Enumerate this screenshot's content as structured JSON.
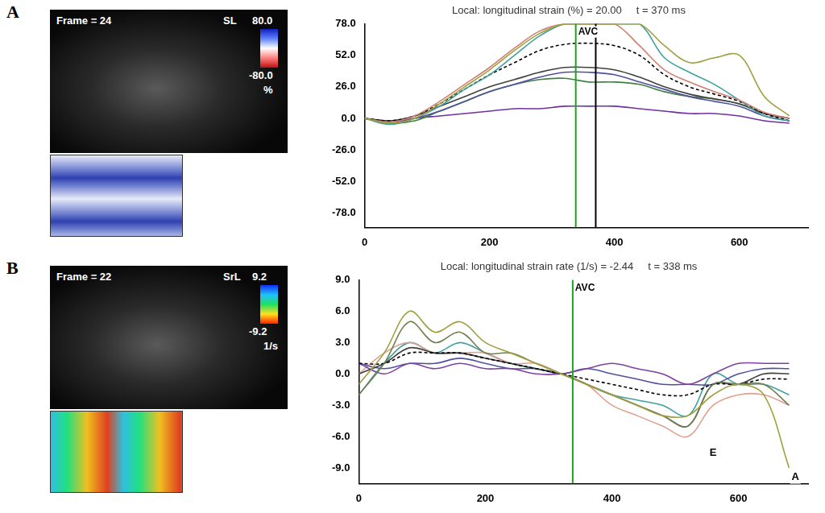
{
  "chart_data": [
    {
      "type": "line",
      "panel": "A",
      "title": "Local: longitudinal strain (%) = 20.00     t = 370 ms",
      "image": {
        "frame_label": "Frame = 24",
        "scale_name": "SL",
        "scale_max": "80.0",
        "scale_min": "-80.0",
        "scale_unit": "%"
      },
      "x": [
        0,
        40,
        80,
        120,
        160,
        200,
        240,
        280,
        320,
        360,
        400,
        440,
        480,
        520,
        560,
        600,
        640,
        680
      ],
      "xlim": [
        0,
        710
      ],
      "xticks": [
        0,
        200,
        400,
        600
      ],
      "ylim": [
        -90,
        78
      ],
      "yticks": [
        {
          "value": -78,
          "label": "-78.0"
        },
        {
          "value": -52,
          "label": "-52.0"
        },
        {
          "value": -26,
          "label": "-26.0"
        },
        {
          "value": 0,
          "label": "0.0"
        },
        {
          "value": 26,
          "label": "26.0"
        },
        {
          "value": 52,
          "label": "52.0"
        },
        {
          "value": 78,
          "label": "78.0"
        }
      ],
      "grid": false,
      "vlines": [
        {
          "x": 338,
          "label": "AVC",
          "color": "#20a020"
        },
        {
          "x": 370,
          "color": "#000000"
        }
      ],
      "series": [
        {
          "color": "#a0a040",
          "line_style": "solid",
          "values": [
            0,
            -4,
            0,
            12,
            26,
            40,
            56,
            70,
            78,
            78,
            78,
            78,
            60,
            46,
            50,
            52,
            18,
            2
          ]
        },
        {
          "color": "#d08070",
          "line_style": "solid",
          "values": [
            0,
            -3,
            2,
            14,
            28,
            42,
            58,
            72,
            78,
            78,
            78,
            60,
            40,
            30,
            22,
            15,
            5,
            0
          ]
        },
        {
          "color": "#40a0a0",
          "line_style": "solid",
          "values": [
            0,
            -5,
            0,
            10,
            24,
            36,
            52,
            68,
            78,
            78,
            78,
            78,
            50,
            38,
            28,
            15,
            2,
            -2
          ]
        },
        {
          "color": "#000000",
          "line_style": "dashed",
          "values": [
            0,
            -2,
            2,
            12,
            24,
            36,
            46,
            56,
            61,
            62,
            60,
            52,
            36,
            26,
            20,
            14,
            4,
            -2
          ]
        },
        {
          "color": "#404040",
          "line_style": "solid",
          "values": [
            0,
            -2,
            2,
            10,
            18,
            26,
            32,
            38,
            42,
            42,
            40,
            34,
            26,
            20,
            16,
            12,
            4,
            0
          ]
        },
        {
          "color": "#5050a0",
          "line_style": "solid",
          "values": [
            0,
            -2,
            0,
            6,
            14,
            22,
            28,
            34,
            38,
            38,
            36,
            30,
            24,
            18,
            14,
            10,
            2,
            -2
          ]
        },
        {
          "color": "#408040",
          "line_style": "solid",
          "values": [
            0,
            -4,
            -2,
            6,
            14,
            22,
            28,
            32,
            33,
            30,
            30,
            28,
            22,
            18,
            16,
            12,
            4,
            0
          ]
        },
        {
          "color": "#7030a0",
          "line_style": "solid",
          "values": [
            0,
            -4,
            0,
            2,
            4,
            6,
            8,
            8,
            10,
            10,
            10,
            8,
            6,
            4,
            4,
            2,
            -2,
            -4
          ]
        }
      ]
    },
    {
      "type": "line",
      "panel": "B",
      "title": "Local: longitudinal strain rate (1/s) = -2.44     t = 338 ms",
      "image": {
        "frame_label": "Frame = 22",
        "scale_name": "SrL",
        "scale_max": "9.2",
        "scale_min": "-9.2",
        "scale_unit": "1/s"
      },
      "x": [
        0,
        40,
        80,
        120,
        160,
        200,
        240,
        280,
        320,
        360,
        400,
        440,
        480,
        520,
        560,
        600,
        640,
        680
      ],
      "xlim": [
        0,
        710
      ],
      "xticks": [
        0,
        200,
        400,
        600
      ],
      "ylim": [
        -10.5,
        9
      ],
      "yticks": [
        {
          "value": -9,
          "label": "-9.0"
        },
        {
          "value": -6,
          "label": "-6.0"
        },
        {
          "value": -3,
          "label": "-3.0"
        },
        {
          "value": 0,
          "label": "0.0"
        },
        {
          "value": 3,
          "label": "3.0"
        },
        {
          "value": 6,
          "label": "6.0"
        },
        {
          "value": 9,
          "label": "9.0"
        }
      ],
      "grid": false,
      "vlines": [
        {
          "x": 338,
          "label": "AVC",
          "color": "#20a020"
        }
      ],
      "annotations": [
        {
          "x": 560,
          "y": -7.6,
          "text": "E"
        },
        {
          "x": 690,
          "y": -9.9,
          "text": "A"
        }
      ],
      "series": [
        {
          "color": "#a0a040",
          "line_style": "solid",
          "values": [
            -1,
            2,
            6,
            4,
            5,
            3,
            2,
            1,
            0,
            -1,
            -2,
            -3,
            -4,
            -4,
            -2,
            -1,
            -2,
            -9
          ]
        },
        {
          "color": "#708050",
          "line_style": "solid",
          "values": [
            -2,
            1,
            5,
            3,
            4,
            2,
            2,
            1,
            0,
            -1,
            -2,
            -3,
            -4,
            -5,
            -1,
            -1,
            -1,
            -3
          ]
        },
        {
          "color": "#000000",
          "line_style": "dashed",
          "values": [
            1,
            1,
            2,
            2,
            2,
            1.5,
            1,
            0.5,
            0,
            -0.5,
            -1,
            -1.5,
            -2,
            -2,
            -1,
            -1,
            -0.5,
            -0.5
          ]
        },
        {
          "color": "#404040",
          "line_style": "solid",
          "values": [
            0,
            1,
            2.5,
            2,
            2,
            1.5,
            1,
            0.5,
            0,
            -1,
            -2,
            -3,
            -4,
            -5,
            -1,
            -1,
            0,
            0
          ]
        },
        {
          "color": "#8040a0",
          "line_style": "solid",
          "values": [
            1,
            0,
            1,
            0.5,
            1,
            0.5,
            0.5,
            0,
            0,
            0.5,
            1,
            0.5,
            0,
            -1,
            0,
            1,
            1,
            1
          ]
        },
        {
          "color": "#5050a0",
          "line_style": "solid",
          "values": [
            1,
            0.5,
            1,
            1,
            1.5,
            1,
            0.5,
            0.5,
            0,
            0.5,
            0,
            -0.5,
            -1,
            -1,
            -1,
            0,
            0.5,
            0.5
          ]
        },
        {
          "color": "#e0a090",
          "line_style": "solid",
          "values": [
            0,
            2,
            3,
            2,
            2,
            2,
            1,
            1,
            0,
            -1,
            -3,
            -4,
            -5,
            -6,
            -3,
            -2,
            -2,
            -3
          ]
        },
        {
          "color": "#40a0a0",
          "line_style": "solid",
          "values": [
            -2,
            1,
            3,
            2,
            3,
            2,
            1,
            0.5,
            0,
            -1,
            -2,
            -2.5,
            -3,
            -4,
            0,
            -1,
            -1,
            -2
          ]
        }
      ]
    }
  ]
}
